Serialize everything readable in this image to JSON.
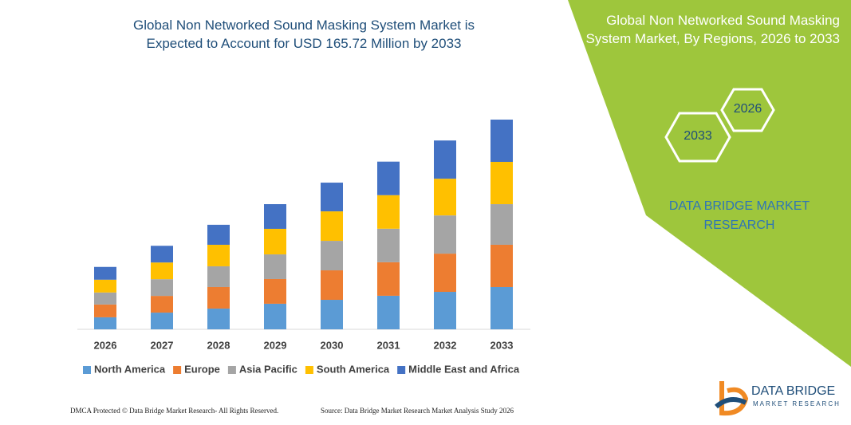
{
  "chart_data": {
    "type": "stacked_bar",
    "title": "Global Non Networked Sound Masking System Market is Expected to Account for USD 165.72 Million by 2033",
    "categories": [
      "2026",
      "2027",
      "2028",
      "2029",
      "2030",
      "2031",
      "2032",
      "2033"
    ],
    "series": [
      {
        "name": "North America",
        "color": "#5b9bd5",
        "values": [
          9.5,
          13.2,
          16.4,
          20.2,
          23.3,
          26.5,
          29.6,
          33.4
        ]
      },
      {
        "name": "Europe",
        "color": "#ed7d31",
        "values": [
          10.1,
          13.2,
          17.0,
          19.5,
          23.3,
          26.5,
          30.2,
          33.4
        ]
      },
      {
        "name": "Asia Pacific",
        "color": "#a5a5a5",
        "values": [
          9.5,
          13.2,
          16.4,
          19.5,
          23.3,
          26.5,
          30.2,
          32.1
        ]
      },
      {
        "name": "South America",
        "color": "#ffc000",
        "values": [
          10.1,
          13.2,
          17.0,
          20.2,
          23.3,
          26.5,
          29.0,
          33.4
        ]
      },
      {
        "name": "Middle East and Africa",
        "color": "#4472c4",
        "values": [
          10.1,
          13.2,
          15.8,
          19.5,
          22.7,
          26.5,
          30.2,
          33.4
        ]
      }
    ]
  },
  "panel": {
    "title": "Global Non Networked Sound Masking System Market, By Regions, 2026 to 2033",
    "hex_front": "2033",
    "hex_back": "2026",
    "brand": "DATA BRIDGE MARKET RESEARCH"
  },
  "logo": {
    "name": "DATA BRIDGE",
    "tagline": "MARKET RESEARCH"
  },
  "footer": {
    "dmca": "DMCA Protected © Data Bridge Market Research- All Rights Reserved.",
    "source": "Source: Data Bridge Market Research Market Analysis Study 2026"
  }
}
